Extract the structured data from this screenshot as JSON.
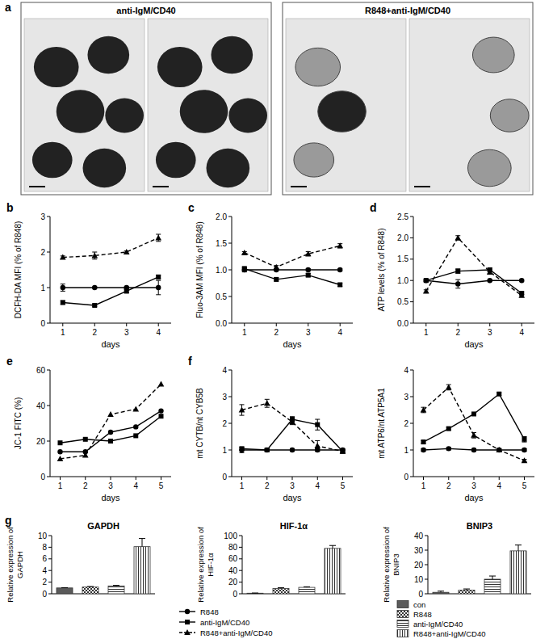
{
  "panel_a": {
    "panel": "a",
    "titles": [
      "anti-IgM/CD40",
      "R848+anti-IgM/CD40"
    ]
  },
  "line_legend": [
    {
      "name": "R848",
      "marker": "circle",
      "line_style": "solid",
      "color": "#000000"
    },
    {
      "name": "anti-IgM/CD40",
      "marker": "square",
      "line_style": "solid",
      "color": "#000000"
    },
    {
      "name": "R848+anti-IgM/CD40",
      "marker": "triangle",
      "line_style": "dashed",
      "color": "#000000"
    }
  ],
  "bar_legend": [
    {
      "name": "con"
    },
    {
      "name": "R848"
    },
    {
      "name": "anti-IgM/CD40"
    },
    {
      "name": "R848+anti-IgM/CD40"
    }
  ],
  "chart_data": [
    {
      "type": "line",
      "panel": "b",
      "x_label": "days",
      "y_label": "DCFH-DA MFI (% of R848)",
      "x": [
        1,
        2,
        3,
        4
      ],
      "xlim": [
        0.6,
        4.4
      ],
      "xticks": [
        1,
        2,
        3,
        4
      ],
      "ylim": [
        0,
        3
      ],
      "yticks": [
        0,
        1,
        2,
        3
      ],
      "series": [
        {
          "values": [
            1,
            1,
            1,
            1
          ],
          "errors": [
            0.1,
            0.02,
            0.02,
            0.2
          ]
        },
        {
          "values": [
            0.58,
            0.5,
            0.9,
            1.3
          ],
          "errors": [
            0.05,
            0.03,
            0.05,
            0.05
          ]
        },
        {
          "values": [
            1.85,
            1.9,
            2.0,
            2.4
          ],
          "errors": [
            0.04,
            0.1,
            0.03,
            0.1
          ]
        }
      ]
    },
    {
      "type": "line",
      "panel": "c",
      "x_label": "days",
      "y_label": "Fluo-3AM MFI (% of R848)",
      "x": [
        1,
        2,
        3,
        4
      ],
      "xlim": [
        0.6,
        4.4
      ],
      "xticks": [
        1,
        2,
        3,
        4
      ],
      "ylim": [
        0,
        2
      ],
      "yticks": [
        {
          "value": 0,
          "label": "0.0"
        },
        0.5,
        {
          "value": 1,
          "label": "1.0"
        },
        1.5,
        {
          "value": 2,
          "label": "2.0"
        }
      ],
      "series": [
        {
          "values": [
            1,
            1,
            1,
            1
          ],
          "errors": [
            0.04,
            0.02,
            0.02,
            0.02
          ]
        },
        {
          "values": [
            1.02,
            0.82,
            0.9,
            0.72
          ],
          "errors": [
            0.04,
            0.03,
            0.03,
            0.03
          ]
        },
        {
          "values": [
            1.32,
            1.05,
            1.3,
            1.45
          ],
          "errors": [
            0.02,
            0.03,
            0.04,
            0.04
          ]
        }
      ]
    },
    {
      "type": "line",
      "panel": "d",
      "x_label": "days",
      "y_label": "ATP levels (% of R848)",
      "x": [
        1,
        2,
        3,
        4
      ],
      "xlim": [
        0.6,
        4.4
      ],
      "xticks": [
        1,
        2,
        3,
        4
      ],
      "ylim": [
        0,
        2.5
      ],
      "yticks": [
        {
          "value": 0,
          "label": "0.0"
        },
        0.5,
        {
          "value": 1,
          "label": "1.0"
        },
        1.5,
        {
          "value": 2,
          "label": "2.0"
        },
        2.5
      ],
      "series": [
        {
          "values": [
            1,
            0.92,
            1,
            1
          ],
          "errors": [
            0.02,
            0.1,
            0.02,
            0.02
          ]
        },
        {
          "values": [
            1.0,
            1.22,
            1.25,
            0.7
          ],
          "errors": [
            0.03,
            0.05,
            0.04,
            0.03
          ]
        },
        {
          "values": [
            0.75,
            2.0,
            1.2,
            0.65
          ],
          "errors": [
            0.03,
            0.05,
            0.05,
            0.03
          ]
        }
      ]
    },
    {
      "type": "line",
      "panel": "e",
      "x_label": "days",
      "y_label": "JC-1 FITC (%)",
      "x": [
        1,
        2,
        3,
        4,
        5
      ],
      "xlim": [
        0.6,
        5.4
      ],
      "xticks": [
        1,
        2,
        3,
        4,
        5
      ],
      "ylim": [
        0,
        60
      ],
      "yticks": [
        0,
        20,
        40,
        60
      ],
      "series": [
        {
          "values": [
            14,
            14,
            25,
            28,
            37
          ]
        },
        {
          "values": [
            19,
            21,
            20,
            23,
            34
          ]
        },
        {
          "values": [
            10,
            12,
            35,
            38,
            52
          ]
        }
      ]
    },
    {
      "type": "line",
      "panel": "f",
      "x_label": "days",
      "y_label": "mt CYTB/nt CYB5B",
      "x": [
        1,
        2,
        3,
        4,
        5
      ],
      "xlim": [
        0.6,
        5.4
      ],
      "xticks": [
        1,
        2,
        3,
        4,
        5
      ],
      "ylim": [
        0,
        4
      ],
      "yticks": [
        0,
        1,
        2,
        3,
        4
      ],
      "series": [
        {
          "values": [
            1,
            1,
            1,
            1,
            1
          ],
          "errors": [
            0.1,
            0.05,
            0.05,
            0.05,
            0.05
          ]
        },
        {
          "values": [
            1.05,
            1.0,
            2.15,
            1.95,
            0.95
          ],
          "errors": [
            0.05,
            0.05,
            0.1,
            0.2,
            0.05
          ]
        },
        {
          "values": [
            2.5,
            2.75,
            2.05,
            1.15,
            0.95
          ],
          "errors": [
            0.2,
            0.15,
            0.1,
            0.2,
            0.05
          ]
        }
      ]
    },
    {
      "type": "line",
      "x_label": "days",
      "y_label": "mt ATP6/nt ATP5A1",
      "x": [
        1,
        2,
        3,
        4,
        5
      ],
      "xlim": [
        0.6,
        5.4
      ],
      "xticks": [
        1,
        2,
        3,
        4,
        5
      ],
      "ylim": [
        0,
        4
      ],
      "yticks": [
        0,
        1,
        2,
        3,
        4
      ],
      "series": [
        {
          "values": [
            1,
            1.05,
            1,
            1,
            1
          ],
          "errors": [
            0.05,
            0.05,
            0.05,
            0.05,
            0.05
          ]
        },
        {
          "values": [
            1.3,
            1.8,
            2.35,
            3.1,
            1.4
          ],
          "errors": [
            0.05,
            0.05,
            0.05,
            0.05,
            0.1
          ]
        },
        {
          "values": [
            2.5,
            3.35,
            1.55,
            1.0,
            0.6
          ],
          "errors": [
            0.1,
            0.1,
            0.1,
            0.05,
            0.05
          ]
        }
      ]
    },
    {
      "type": "bar",
      "panel": "g",
      "title": "GAPDH",
      "y_label": [
        "Relative expression of",
        "GAPDH"
      ],
      "ylim": [
        0,
        10
      ],
      "yticks": [
        0,
        2,
        4,
        6,
        8,
        10
      ],
      "values": [
        1,
        1.15,
        1.35,
        8.1
      ],
      "errors": [
        0.05,
        0.1,
        0.1,
        1.4
      ]
    },
    {
      "type": "bar",
      "title": "HIF-1α",
      "y_label": [
        "Relative expression of",
        "HIF-1α"
      ],
      "ylim": [
        0,
        100
      ],
      "yticks": [
        0,
        20,
        40,
        60,
        80,
        100
      ],
      "values": [
        1,
        9,
        11,
        78
      ],
      "errors": [
        0.3,
        1.5,
        1,
        5
      ]
    },
    {
      "type": "bar",
      "title": "BNIP3",
      "y_label": [
        "Relative expression of",
        "BNIP3"
      ],
      "ylim": [
        0,
        40
      ],
      "yticks": [
        0,
        10,
        20,
        30,
        40
      ],
      "values": [
        1,
        2.5,
        10,
        29.5
      ],
      "errors": [
        0.8,
        0.8,
        2.2,
        4
      ]
    }
  ]
}
